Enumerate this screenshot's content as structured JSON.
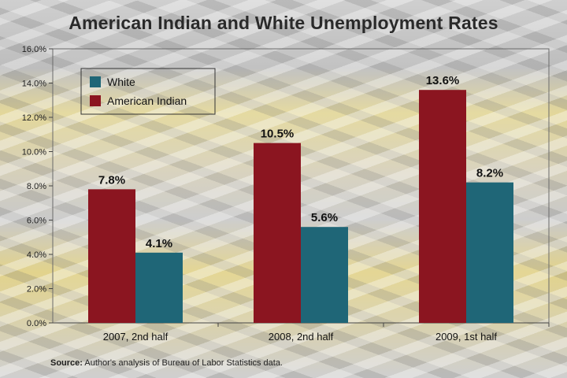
{
  "source_label": "Source:",
  "source_text": "Author's analysis of Bureau of Labor Statistics data.",
  "chart_data": {
    "type": "bar",
    "title": "American Indian and White Unemployment Rates",
    "categories": [
      "2007, 2nd half",
      "2008, 2nd half",
      "2009, 1st half"
    ],
    "series": [
      {
        "name": "American Indian",
        "color": "#8b1520",
        "values": [
          7.8,
          10.5,
          13.6
        ],
        "labels": [
          "7.8%",
          "10.5%",
          "13.6%"
        ]
      },
      {
        "name": "White",
        "color": "#1f6677",
        "values": [
          4.1,
          5.6,
          8.2
        ],
        "labels": [
          "4.1%",
          "5.6%",
          "8.2%"
        ]
      }
    ],
    "ylim": [
      0,
      16
    ],
    "yticks": [
      {
        "value": 0,
        "label": "0.0%"
      },
      {
        "value": 2,
        "label": "2.0%"
      },
      {
        "value": 4,
        "label": "4.0%"
      },
      {
        "value": 6,
        "label": "6.0%"
      },
      {
        "value": 8,
        "label": "8.0%"
      },
      {
        "value": 10,
        "label": "10.0%"
      },
      {
        "value": 12,
        "label": "12.0%"
      },
      {
        "value": 14,
        "label": "14.0%"
      },
      {
        "value": 16,
        "label": "16.0%"
      }
    ],
    "legend": {
      "placement": "top-left",
      "entries": [
        {
          "name": "White",
          "color": "#1f6677"
        },
        {
          "name": "American Indian",
          "color": "#8b1520"
        }
      ]
    },
    "grid": false
  }
}
